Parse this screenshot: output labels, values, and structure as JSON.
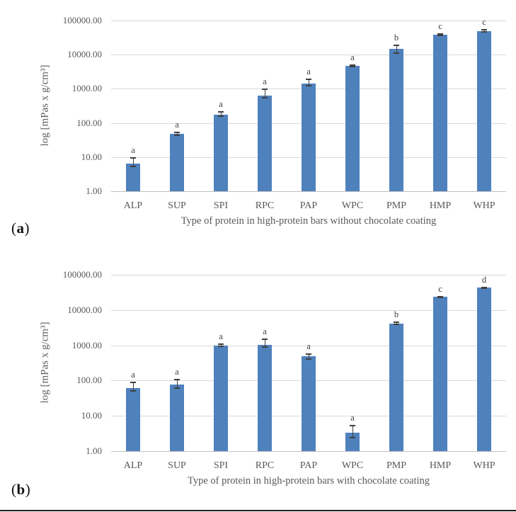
{
  "panels": [
    {
      "label_open": "(",
      "letter": "a",
      "label_close": ")"
    },
    {
      "label_open": "(",
      "letter": "b",
      "label_close": ")"
    }
  ],
  "chart_data": [
    {
      "type": "bar",
      "title": "",
      "xlabel": "Type of protein in high-protein bars without chocolate coating",
      "ylabel": "log [mPas x g/cm³]",
      "categories": [
        "ALP",
        "SUP",
        "SPI",
        "RPC",
        "PAP",
        "WPC",
        "PMP",
        "HMP",
        "WHP"
      ],
      "values": [
        6.3,
        47,
        175,
        630,
        1400,
        4700,
        14500,
        39000,
        50000
      ],
      "error_low": [
        5.3,
        43,
        155,
        550,
        1250,
        4450,
        11000,
        37000,
        47500
      ],
      "error_high": [
        9.4,
        52,
        215,
        950,
        1870,
        5000,
        19000,
        41000,
        53000
      ],
      "sig_letters": [
        "a",
        "a",
        "a",
        "a",
        "a",
        "a",
        "b",
        "c",
        "c"
      ],
      "y_scale": "log10",
      "ylim": [
        1,
        100000
      ],
      "y_ticks": [
        "100000.00",
        "10000.00",
        "1000.00",
        "100.00",
        "10.00",
        "1.00"
      ],
      "grid": true,
      "legend": "none",
      "bar_color": "#4f81bd",
      "error_color": "#3f3f3f",
      "gridline_color": "#d9d9d9"
    },
    {
      "type": "bar",
      "title": "",
      "xlabel": "Type of protein in high-protein bars with chocolate coating",
      "ylabel": "log [mPas x g/cm³]",
      "categories": [
        "ALP",
        "SUP",
        "SPI",
        "RPC",
        "PAP",
        "WPC",
        "PMP",
        "HMP",
        "WHP"
      ],
      "values": [
        61,
        76,
        1000,
        1050,
        480,
        3.3,
        4200,
        23400,
        42700
      ],
      "error_low": [
        52,
        62,
        950,
        900,
        400,
        2.4,
        3900,
        22500,
        41000
      ],
      "error_high": [
        89,
        108,
        1100,
        1480,
        570,
        5.4,
        4600,
        24300,
        44500
      ],
      "sig_letters": [
        "a",
        "a",
        "a",
        "a",
        "a",
        "a",
        "b",
        "c",
        "d"
      ],
      "y_scale": "log10",
      "ylim": [
        1,
        100000
      ],
      "y_ticks": [
        "100000.00",
        "10000.00",
        "1000.00",
        "100.00",
        "10.00",
        "1.00"
      ],
      "grid": true,
      "legend": "none",
      "bar_color": "#4f81bd",
      "error_color": "#3f3f3f",
      "gridline_color": "#d9d9d9"
    }
  ]
}
